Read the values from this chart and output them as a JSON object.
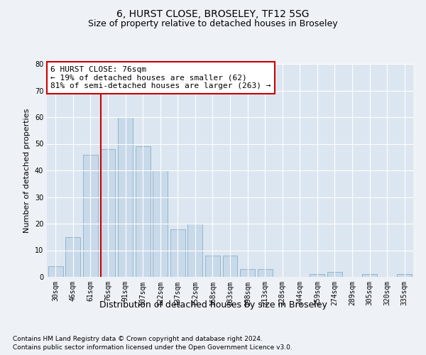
{
  "title1": "6, HURST CLOSE, BROSELEY, TF12 5SG",
  "title2": "Size of property relative to detached houses in Broseley",
  "xlabel": "Distribution of detached houses by size in Broseley",
  "ylabel": "Number of detached properties",
  "categories": [
    "30sqm",
    "46sqm",
    "61sqm",
    "76sqm",
    "91sqm",
    "107sqm",
    "122sqm",
    "137sqm",
    "152sqm",
    "168sqm",
    "183sqm",
    "198sqm",
    "213sqm",
    "228sqm",
    "244sqm",
    "259sqm",
    "274sqm",
    "289sqm",
    "305sqm",
    "320sqm",
    "335sqm"
  ],
  "values": [
    4,
    15,
    46,
    48,
    60,
    49,
    40,
    18,
    20,
    8,
    8,
    3,
    3,
    0,
    0,
    1,
    2,
    0,
    1,
    0,
    1
  ],
  "bar_color": "#c8d9ea",
  "bar_edge_color": "#8aafc8",
  "redline_index": 3,
  "annotation_title": "6 HURST CLOSE: 76sqm",
  "annotation_line1": "← 19% of detached houses are smaller (62)",
  "annotation_line2": "81% of semi-detached houses are larger (263) →",
  "ylim": [
    0,
    80
  ],
  "yticks": [
    0,
    10,
    20,
    30,
    40,
    50,
    60,
    70,
    80
  ],
  "footnote1": "Contains HM Land Registry data © Crown copyright and database right 2024.",
  "footnote2": "Contains public sector information licensed under the Open Government Licence v3.0.",
  "bg_color": "#eef2f7",
  "plot_bg_color": "#dce6f0",
  "grid_color": "#ffffff",
  "annotation_box_color": "#ffffff",
  "annotation_box_edge": "#cc0000",
  "redline_color": "#cc0000",
  "title_fontsize": 10,
  "subtitle_fontsize": 9,
  "xlabel_fontsize": 9,
  "ylabel_fontsize": 8,
  "tick_fontsize": 7,
  "annotation_fontsize": 8,
  "footnote_fontsize": 6.5
}
